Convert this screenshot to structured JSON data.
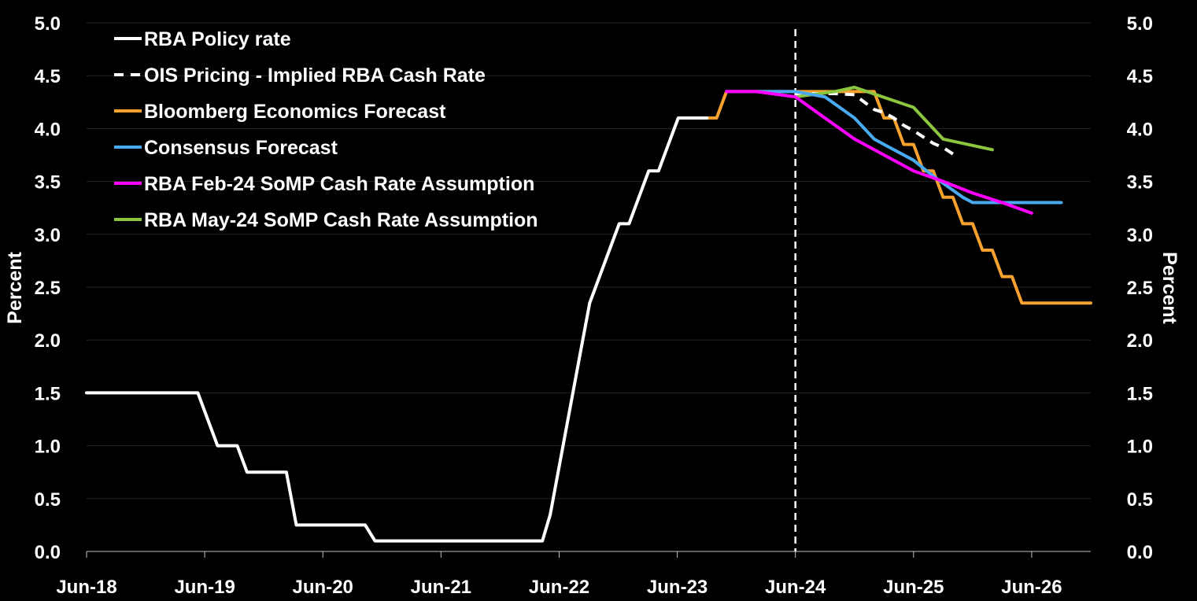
{
  "chart_data": {
    "type": "line",
    "title": "",
    "ylabel_left": "Percent",
    "ylabel_right": "Percent",
    "ylim": [
      0,
      5
    ],
    "yticks": [
      "0.0",
      "0.5",
      "1.0",
      "1.5",
      "2.0",
      "2.5",
      "3.0",
      "3.5",
      "4.0",
      "4.5",
      "5.0"
    ],
    "x_unit": "months since Jun-18",
    "xlim": [
      0,
      102
    ],
    "xticks": [
      {
        "label": "Jun-18",
        "x": 0
      },
      {
        "label": "Jun-19",
        "x": 12
      },
      {
        "label": "Jun-20",
        "x": 24
      },
      {
        "label": "Jun-21",
        "x": 36
      },
      {
        "label": "Jun-22",
        "x": 48
      },
      {
        "label": "Jun-23",
        "x": 60
      },
      {
        "label": "Jun-24",
        "x": 72
      },
      {
        "label": "Jun-25",
        "x": 84
      },
      {
        "label": "Jun-26",
        "x": 96
      }
    ],
    "vline_x": 72,
    "legend_position": "top-left",
    "series": [
      {
        "name": "Bloomberg Economics Forecast",
        "color": "#f7a12e",
        "dash": "solid",
        "points": [
          [
            63,
            4.1
          ],
          [
            64,
            4.1
          ],
          [
            65,
            4.35
          ],
          [
            80,
            4.35
          ],
          [
            81,
            4.1
          ],
          [
            82,
            4.1
          ],
          [
            83,
            3.85
          ],
          [
            84,
            3.85
          ],
          [
            85,
            3.6
          ],
          [
            86,
            3.6
          ],
          [
            87,
            3.35
          ],
          [
            88,
            3.35
          ],
          [
            89,
            3.1
          ],
          [
            90,
            3.1
          ],
          [
            91,
            2.85
          ],
          [
            92,
            2.85
          ],
          [
            93,
            2.6
          ],
          [
            94,
            2.6
          ],
          [
            95,
            2.35
          ],
          [
            102,
            2.35
          ]
        ]
      },
      {
        "name": "RBA Policy rate",
        "color": "#ffffff",
        "dash": "solid",
        "points": [
          [
            0,
            1.5
          ],
          [
            11.3,
            1.5
          ],
          [
            12.3,
            1.25
          ],
          [
            13.3,
            1.0
          ],
          [
            15.3,
            1.0
          ],
          [
            16.3,
            0.75
          ],
          [
            20.3,
            0.75
          ],
          [
            21.3,
            0.25
          ],
          [
            28.3,
            0.25
          ],
          [
            29.3,
            0.1
          ],
          [
            46.3,
            0.1
          ],
          [
            47.1,
            0.35
          ],
          [
            48.1,
            0.85
          ],
          [
            49.1,
            1.35
          ],
          [
            50.1,
            1.85
          ],
          [
            51.1,
            2.35
          ],
          [
            52.1,
            2.6
          ],
          [
            53.1,
            2.85
          ],
          [
            54.1,
            3.1
          ],
          [
            55.1,
            3.1
          ],
          [
            56.1,
            3.35
          ],
          [
            57.1,
            3.6
          ],
          [
            58.1,
            3.6
          ],
          [
            59.1,
            3.85
          ],
          [
            60.1,
            4.1
          ],
          [
            63,
            4.1
          ]
        ]
      },
      {
        "name": "OIS Pricing - Implied RBA Cash Rate",
        "color": "#ffffff",
        "dash": "dashed",
        "points": [
          [
            72,
            4.33
          ],
          [
            74,
            4.33
          ],
          [
            76,
            4.33
          ],
          [
            78,
            4.32
          ],
          [
            80,
            4.18
          ],
          [
            81,
            4.15
          ],
          [
            82,
            4.1
          ],
          [
            83,
            4.03
          ],
          [
            84,
            3.98
          ],
          [
            85,
            3.92
          ],
          [
            86,
            3.86
          ],
          [
            87,
            3.82
          ],
          [
            88,
            3.76
          ]
        ]
      },
      {
        "name": "RBA May-24 SoMP Cash Rate Assumption",
        "color": "#8cc63f",
        "dash": "solid",
        "points": [
          [
            72,
            4.3
          ],
          [
            76,
            4.35
          ],
          [
            78,
            4.39
          ],
          [
            84,
            4.2
          ],
          [
            87,
            3.9
          ],
          [
            92,
            3.8
          ]
        ]
      },
      {
        "name": "Consensus Forecast",
        "color": "#4aaaf0",
        "dash": "solid",
        "points": [
          [
            65,
            4.35
          ],
          [
            72,
            4.35
          ],
          [
            75,
            4.3
          ],
          [
            78,
            4.1
          ],
          [
            80,
            3.9
          ],
          [
            81,
            3.85
          ],
          [
            84,
            3.7
          ],
          [
            86,
            3.55
          ],
          [
            89,
            3.35
          ],
          [
            90,
            3.3
          ],
          [
            99,
            3.3
          ]
        ]
      },
      {
        "name": "RBA Feb-24 SoMP Cash Rate Assumption",
        "color": "#ff00ff",
        "dash": "solid",
        "points": [
          [
            65,
            4.35
          ],
          [
            68,
            4.35
          ],
          [
            72,
            4.3
          ],
          [
            75,
            4.1
          ],
          [
            78,
            3.9
          ],
          [
            81,
            3.75
          ],
          [
            84,
            3.6
          ],
          [
            87,
            3.5
          ],
          [
            90,
            3.39
          ],
          [
            93,
            3.3
          ],
          [
            96,
            3.2
          ]
        ]
      }
    ]
  },
  "legend": [
    {
      "label": "RBA Policy rate",
      "color": "#ffffff",
      "dash": "solid"
    },
    {
      "label": "OIS Pricing - Implied RBA Cash Rate",
      "color": "#ffffff",
      "dash": "dashed"
    },
    {
      "label": "Bloomberg Economics Forecast",
      "color": "#f7a12e",
      "dash": "solid"
    },
    {
      "label": "Consensus Forecast",
      "color": "#4aaaf0",
      "dash": "solid"
    },
    {
      "label": "RBA Feb-24 SoMP Cash Rate Assumption",
      "color": "#ff00ff",
      "dash": "solid"
    },
    {
      "label": "RBA May-24 SoMP Cash Rate Assumption",
      "color": "#8cc63f",
      "dash": "solid"
    }
  ]
}
